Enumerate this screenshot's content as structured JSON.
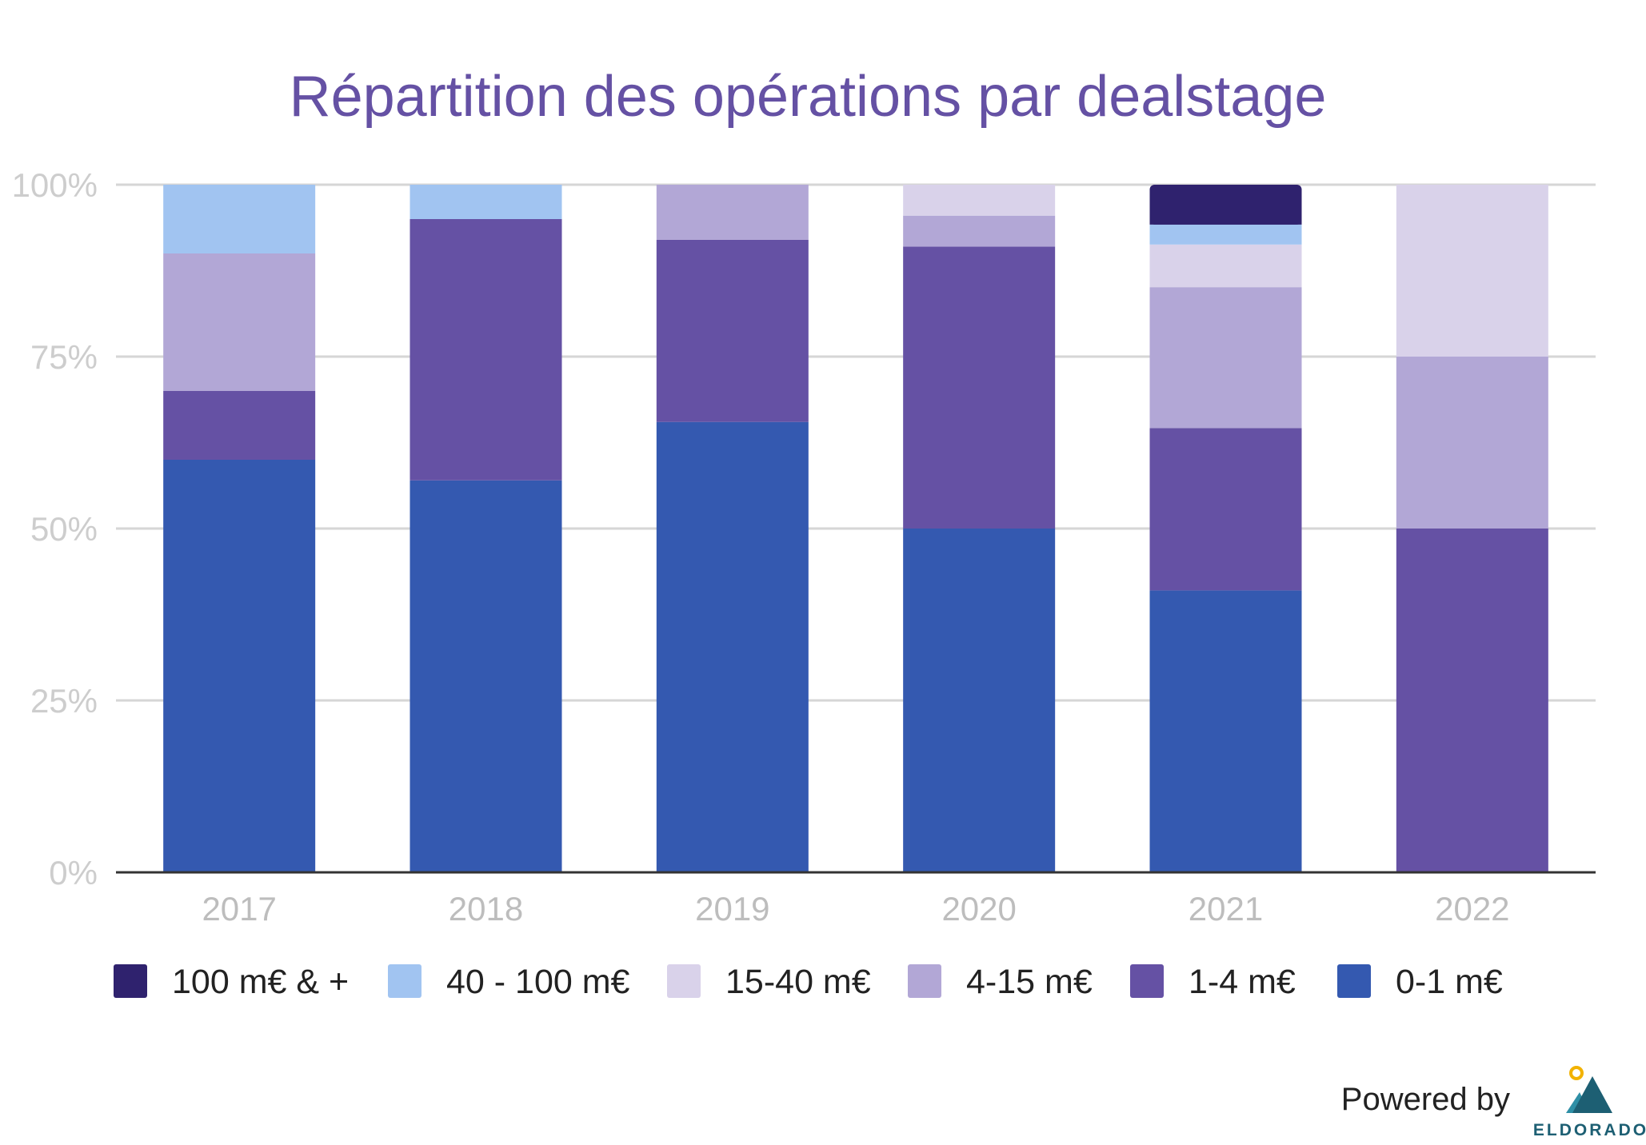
{
  "chart_data": {
    "type": "bar",
    "stacked": true,
    "normalized": true,
    "title": "Répartition des opérations par dealstage",
    "xlabel": "",
    "ylabel": "",
    "ylim": [
      0,
      100
    ],
    "yticks": [
      0,
      25,
      50,
      75,
      100
    ],
    "ytick_labels": [
      "0%",
      "25%",
      "50%",
      "75%",
      "100%"
    ],
    "grid": true,
    "legend_position": "bottom",
    "categories": [
      "2017",
      "2018",
      "2019",
      "2020",
      "2021",
      "2022"
    ],
    "series": [
      {
        "name": "0-1 m€",
        "color": "#3459b0",
        "values": [
          60,
          57,
          65.5,
          50,
          41,
          0
        ]
      },
      {
        "name": "1-4 m€",
        "color": "#6551a4",
        "values": [
          10,
          38,
          26.5,
          41,
          23.6,
          50
        ]
      },
      {
        "name": "4-15 m€",
        "color": "#b2a7d6",
        "values": [
          20,
          0,
          8,
          4.5,
          20.5,
          25
        ]
      },
      {
        "name": "15-40 m€",
        "color": "#d9d2ea",
        "values": [
          0,
          0,
          0,
          4.5,
          6.2,
          25
        ]
      },
      {
        "name": "40 - 100 m€",
        "color": "#a1c4f1",
        "values": [
          10,
          5,
          0,
          0,
          2.9,
          0
        ]
      },
      {
        "name": "100 m€ & +",
        "color": "#2f226e",
        "values": [
          0,
          0,
          0,
          0,
          5.8,
          0
        ]
      }
    ],
    "legend_order": [
      "100 m€ & +",
      "40 - 100 m€",
      "15-40 m€",
      "4-15 m€",
      "1-4 m€",
      "0-1 m€"
    ]
  },
  "colors": {
    "title": "#6551a4",
    "grid": "#d6d6d6",
    "axis": "#333333",
    "brand_text": "#1d5f73",
    "brand_mountain_dark": "#1d5f73",
    "brand_mountain_light": "#2e8fa6",
    "brand_sun": "#f2b200"
  },
  "footer": {
    "powered_by": "Powered by",
    "brand": "ELDORADO",
    "brand_icon": "mountain-sun-icon"
  }
}
